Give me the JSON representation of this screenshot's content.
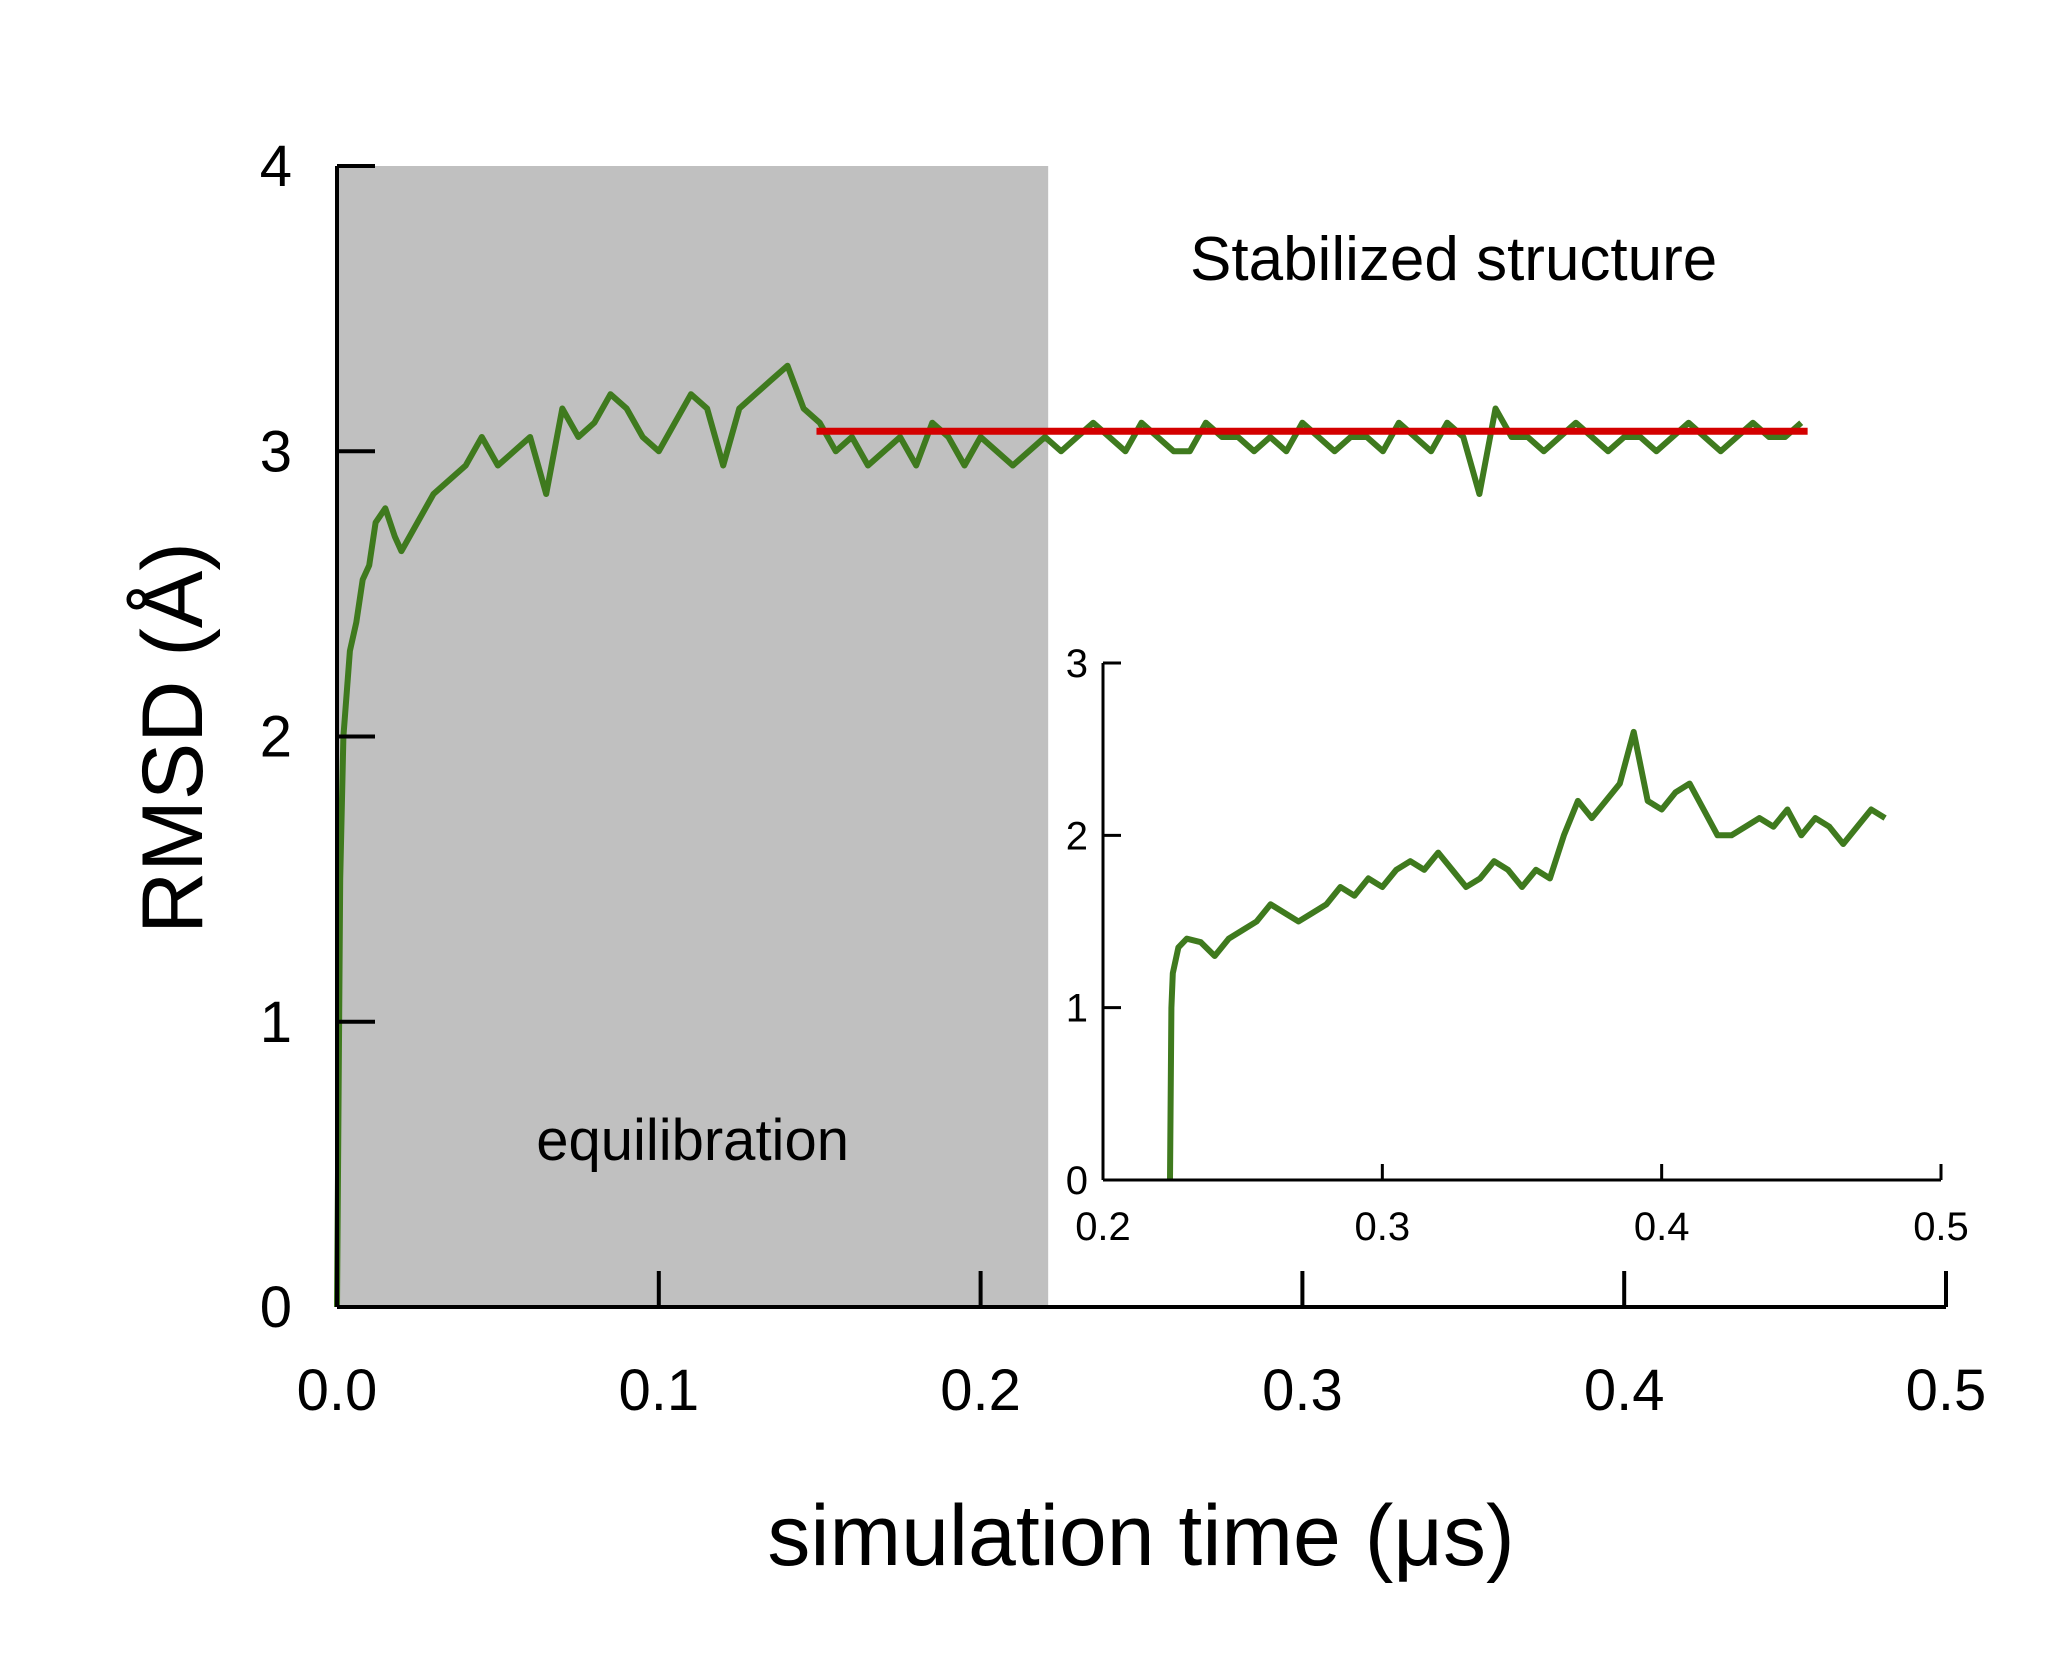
{
  "chart_data": [
    {
      "type": "line",
      "xlabel": "simulation time (μs)",
      "ylabel": "RMSD (Å)",
      "xlim": [
        0.0,
        0.5
      ],
      "ylim": [
        0,
        4
      ],
      "xticks": [
        "0.0",
        "0.1",
        "0.2",
        "0.3",
        "0.4",
        "0.5"
      ],
      "yticks": [
        "0",
        "1",
        "2",
        "3",
        "4"
      ],
      "grid": false,
      "legend": "none",
      "colors": {
        "trace": "#3f7a1e",
        "mean_line": "#d40000",
        "shade": "#c0c0c0"
      },
      "shaded_region": {
        "x": [
          0.0,
          0.221
        ],
        "label": "equilibration"
      },
      "annotations": [
        {
          "text": "Stabilized structure",
          "x": 0.347,
          "y": 3.67
        }
      ],
      "mean_line": {
        "x": [
          0.149,
          0.457
        ],
        "y": 3.07
      },
      "series": [
        {
          "x": [
            0,
            0.001,
            0.002,
            0.004,
            0.006,
            0.008,
            0.01,
            0.012,
            0.015,
            0.018,
            0.02,
            0.025,
            0.03,
            0.035,
            0.04,
            0.045,
            0.05,
            0.055,
            0.06,
            0.065,
            0.07,
            0.075,
            0.08,
            0.085,
            0.09,
            0.095,
            0.1,
            0.105,
            0.11,
            0.115,
            0.12,
            0.125,
            0.13,
            0.135,
            0.14,
            0.145,
            0.15,
            0.155,
            0.16,
            0.165,
            0.17,
            0.175,
            0.18,
            0.185,
            0.19,
            0.195,
            0.2,
            0.205,
            0.21,
            0.215,
            0.22,
            0.225,
            0.23,
            0.235,
            0.24,
            0.245,
            0.25,
            0.255,
            0.26,
            0.265,
            0.27,
            0.275,
            0.28,
            0.285,
            0.29,
            0.295,
            0.3,
            0.305,
            0.31,
            0.315,
            0.32,
            0.325,
            0.33,
            0.335,
            0.34,
            0.345,
            0.35,
            0.355,
            0.36,
            0.365,
            0.37,
            0.375,
            0.38,
            0.385,
            0.39,
            0.395,
            0.4,
            0.405,
            0.41,
            0.415,
            0.42,
            0.425,
            0.43,
            0.435,
            0.44,
            0.445,
            0.45,
            0.455
          ],
          "y": [
            0,
            1.5,
            2.0,
            2.3,
            2.4,
            2.55,
            2.6,
            2.75,
            2.8,
            2.7,
            2.65,
            2.75,
            2.85,
            2.9,
            2.95,
            3.05,
            2.95,
            3.0,
            3.05,
            2.85,
            3.15,
            3.05,
            3.1,
            3.2,
            3.15,
            3.05,
            3.0,
            3.1,
            3.2,
            3.15,
            2.95,
            3.15,
            3.2,
            3.25,
            3.3,
            3.15,
            3.1,
            3.0,
            3.05,
            2.95,
            3.0,
            3.05,
            2.95,
            3.1,
            3.05,
            2.95,
            3.05,
            3.0,
            2.95,
            3.0,
            3.05,
            3.0,
            3.05,
            3.1,
            3.05,
            3.0,
            3.1,
            3.05,
            3.0,
            3.0,
            3.1,
            3.05,
            3.05,
            3.0,
            3.05,
            3.0,
            3.1,
            3.05,
            3.0,
            3.05,
            3.05,
            3.0,
            3.1,
            3.05,
            3.0,
            3.1,
            3.05,
            2.85,
            3.15,
            3.05,
            3.05,
            3.0,
            3.05,
            3.1,
            3.05,
            3.0,
            3.05,
            3.05,
            3.0,
            3.05,
            3.1,
            3.05,
            3.0,
            3.05,
            3.1,
            3.05,
            3.05,
            3.1
          ]
        }
      ]
    },
    {
      "type": "line",
      "xlim": [
        0.2,
        0.5
      ],
      "ylim": [
        0,
        3
      ],
      "xticks": [
        "0.2",
        "0.3",
        "0.4",
        "0.5"
      ],
      "yticks": [
        "0",
        "1",
        "2",
        "3"
      ],
      "grid": false,
      "legend": "none",
      "series": [
        {
          "x": [
            0.224,
            0.2245,
            0.225,
            0.227,
            0.23,
            0.235,
            0.24,
            0.245,
            0.25,
            0.255,
            0.26,
            0.265,
            0.27,
            0.275,
            0.28,
            0.285,
            0.29,
            0.295,
            0.3,
            0.305,
            0.31,
            0.315,
            0.32,
            0.325,
            0.33,
            0.335,
            0.34,
            0.345,
            0.35,
            0.355,
            0.36,
            0.365,
            0.37,
            0.375,
            0.38,
            0.385,
            0.39,
            0.395,
            0.4,
            0.405,
            0.41,
            0.415,
            0.42,
            0.425,
            0.43,
            0.435,
            0.44,
            0.445,
            0.45,
            0.455,
            0.46,
            0.465,
            0.47,
            0.475,
            0.48
          ],
          "y": [
            0,
            1.0,
            1.2,
            1.35,
            1.4,
            1.38,
            1.3,
            1.4,
            1.45,
            1.5,
            1.6,
            1.55,
            1.5,
            1.55,
            1.6,
            1.7,
            1.65,
            1.75,
            1.7,
            1.8,
            1.85,
            1.8,
            1.9,
            1.8,
            1.7,
            1.75,
            1.85,
            1.8,
            1.7,
            1.8,
            1.75,
            2.0,
            2.2,
            2.1,
            2.2,
            2.3,
            2.6,
            2.2,
            2.15,
            2.25,
            2.3,
            2.15,
            2.0,
            2.0,
            2.05,
            2.1,
            2.05,
            2.15,
            2.0,
            2.1,
            2.05,
            1.95,
            2.05,
            2.15,
            2.1
          ]
        }
      ]
    }
  ]
}
